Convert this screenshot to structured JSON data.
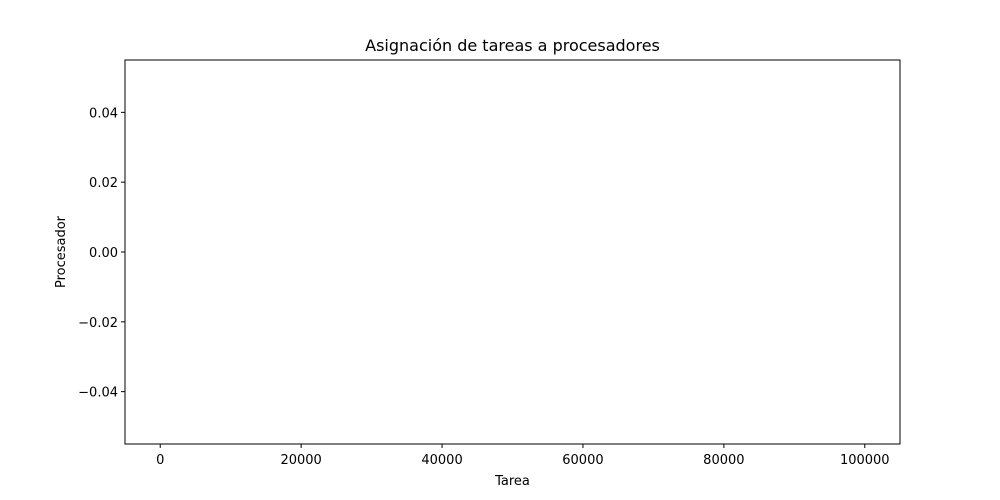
{
  "chart_data": {
    "type": "scatter",
    "title": "Asignación de tareas a procesadores",
    "xlabel": "Tarea",
    "ylabel": "Procesador",
    "xlim": [
      -5000,
      105000
    ],
    "ylim": [
      -0.055,
      0.055
    ],
    "x_ticks": [
      0,
      20000,
      40000,
      60000,
      80000,
      100000
    ],
    "x_tick_labels": [
      "0",
      "20000",
      "40000",
      "60000",
      "80000",
      "100000"
    ],
    "y_ticks": [
      0.04,
      0.02,
      0.0,
      -0.02,
      -0.04
    ],
    "y_tick_labels": [
      "0.04",
      "0.02",
      "0.00",
      "−0.02",
      "−0.04"
    ],
    "grid": false,
    "series": []
  }
}
